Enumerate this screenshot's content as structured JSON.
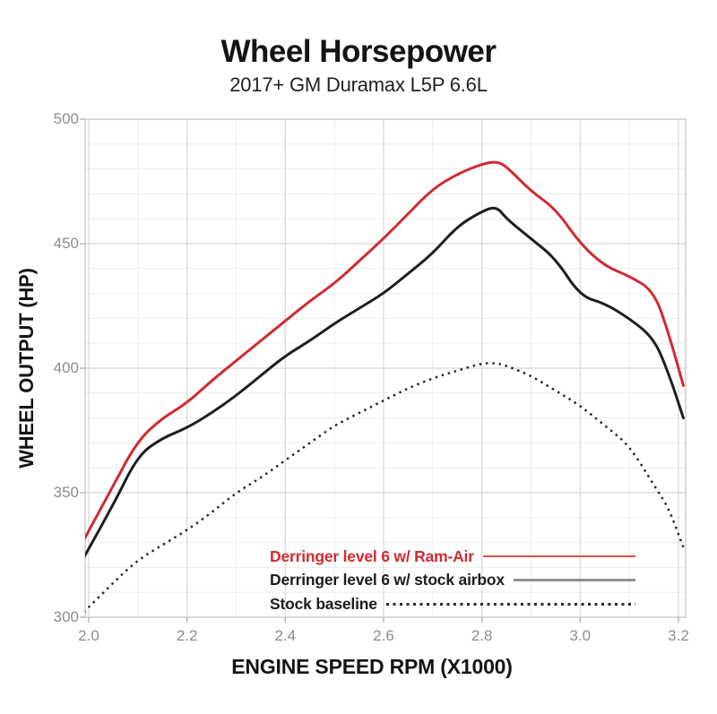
{
  "chart_data": {
    "type": "line",
    "title": "Wheel Horsepower",
    "subtitle": "2017+ GM Duramax L5P 6.6L",
    "xlabel": "ENGINE SPEED RPM (X1000)",
    "ylabel": "WHEEL OUTPUT (HP)",
    "xlim": [
      1.99,
      3.22
    ],
    "ylim": [
      300,
      500
    ],
    "x_ticks": [
      2.0,
      2.2,
      2.4,
      2.6,
      2.8,
      3.0,
      3.2
    ],
    "x_tick_labels": [
      "2.0",
      "2.2",
      "2.4",
      "2.6",
      "2.8",
      "3.0",
      "3.2"
    ],
    "y_ticks": [
      300,
      350,
      400,
      450,
      500
    ],
    "y_tick_labels": [
      "300",
      "350",
      "400",
      "450",
      "500"
    ],
    "grid": true,
    "minor_grid_x_step": 0.1,
    "minor_grid_y_step": 10,
    "legend_position": "inside bottom-right",
    "x": [
      1.99,
      2.05,
      2.1,
      2.15,
      2.2,
      2.25,
      2.3,
      2.35,
      2.4,
      2.45,
      2.5,
      2.55,
      2.6,
      2.65,
      2.7,
      2.75,
      2.8,
      2.83,
      2.85,
      2.9,
      2.95,
      3.0,
      3.05,
      3.1,
      3.15,
      3.18,
      3.21
    ],
    "series": [
      {
        "name": "Derringer level 6 w/ Ram-Air",
        "color": "#cf2b30",
        "line_style": "solid",
        "line_width": 3,
        "values": [
          331,
          353,
          371,
          380,
          386,
          395,
          403,
          411,
          419,
          427,
          434,
          443,
          452,
          462,
          472,
          478,
          482,
          483,
          481,
          471,
          464,
          450,
          441,
          437,
          431,
          414,
          393
        ]
      },
      {
        "name": "Derringer level 6 w/ stock airbox",
        "color": "#1e1e1e",
        "line_style": "solid",
        "line_width": 3,
        "values": [
          324,
          345,
          365,
          372,
          376,
          382,
          389,
          397,
          405,
          411,
          418,
          424,
          430,
          438,
          446,
          457,
          463,
          465,
          460,
          452,
          444,
          429,
          426,
          420,
          412,
          398,
          380
        ]
      },
      {
        "name": "Stock baseline",
        "color": "#2a2a2a",
        "line_style": "dotted",
        "line_width": 2.5,
        "values": [
          302,
          314,
          323,
          329,
          335,
          342,
          350,
          356,
          363,
          370,
          377,
          382,
          387,
          392,
          396,
          399,
          402,
          402,
          401,
          397,
          391,
          385,
          377,
          369,
          353,
          344,
          328
        ]
      }
    ],
    "colors": {
      "accent_red": "#cf2b30",
      "curve_black": "#1e1e1e",
      "legend_gray_line": "#8f8f8f",
      "grid_major": "#d8d8d8",
      "grid_minor": "#ededed",
      "plot_border": "#c6c6c6",
      "tick_mark": "#b0b0b0",
      "tick_label": "#8d8d8d"
    }
  }
}
